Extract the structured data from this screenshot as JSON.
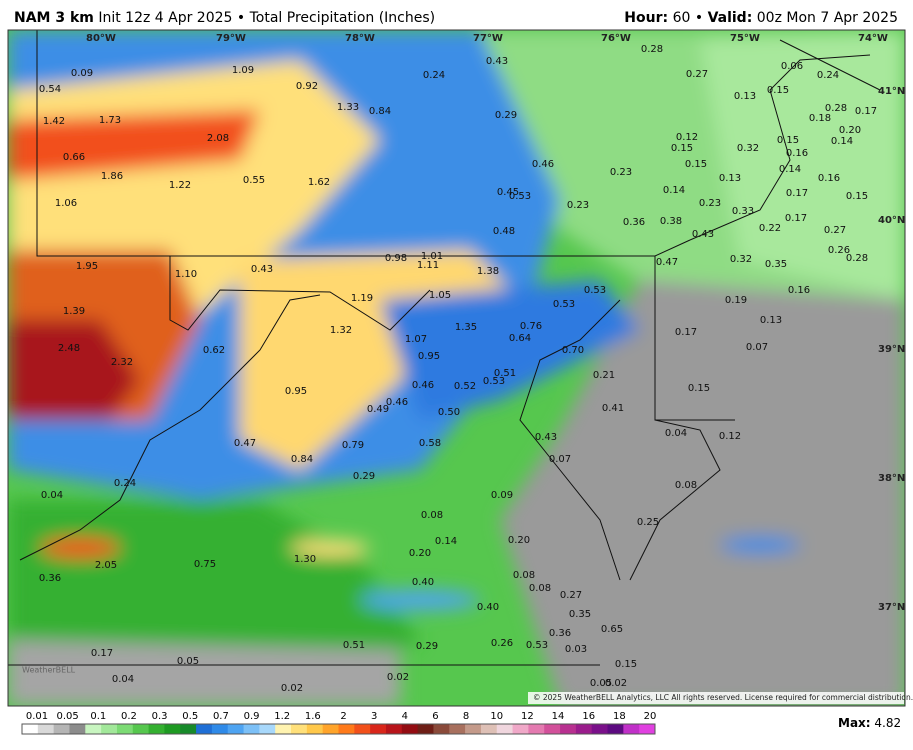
{
  "header": {
    "model": "NAM 3 km",
    "init": "Init 12z 4 Apr 2025",
    "separator": "•",
    "product": "Total Precipitation (Inches)",
    "hour_label": "Hour:",
    "hour": "60",
    "valid_label": "Valid:",
    "valid": "00z Mon 7 Apr 2025"
  },
  "map": {
    "longitude_labels": [
      "80°W",
      "79°W",
      "78°W",
      "77°W",
      "76°W",
      "75°W",
      "74°W"
    ],
    "latitude_labels": [
      "41°N",
      "40°N",
      "39°N",
      "38°N",
      "37°N"
    ],
    "values": [
      "0.09",
      "0.54",
      "1.09",
      "0.92",
      "0.24",
      "0.43",
      "0.28",
      "0.27",
      "0.06",
      "0.24",
      "0.13",
      "0.15",
      "1.42",
      "1.73",
      "1.33",
      "0.84",
      "0.29",
      "0.28",
      "0.18",
      "0.17",
      "2.08",
      "0.12",
      "0.15",
      "0.32",
      "0.15",
      "0.16",
      "0.20",
      "0.14",
      "0.66",
      "1.86",
      "1.22",
      "0.55",
      "1.62",
      "0.46",
      "0.15",
      "0.23",
      "0.13",
      "0.14",
      "0.16",
      "1.06",
      "0.45",
      "0.53",
      "0.23",
      "0.14",
      "0.17",
      "0.15",
      "0.23",
      "0.33",
      "0.36",
      "0.38",
      "0.17",
      "0.22",
      "0.27",
      "0.48",
      "0.43",
      "0.26",
      "0.28",
      "1.01",
      "0.98",
      "1.11",
      "1.95",
      "1.10",
      "0.43",
      "1.38",
      "0.47",
      "0.32",
      "0.35",
      "0.53",
      "1.19",
      "1.05",
      "0.16",
      "0.19",
      "1.39",
      "0.53",
      "0.76",
      "1.35",
      "1.32",
      "0.17",
      "0.13",
      "0.64",
      "1.07",
      "2.48",
      "0.62",
      "0.70",
      "0.07",
      "2.32",
      "0.95",
      "0.21",
      "0.51",
      "0.46",
      "0.52",
      "0.53",
      "0.15",
      "0.95",
      "0.49",
      "0.46",
      "0.50",
      "0.41",
      "0.47",
      "0.79",
      "0.58",
      "0.43",
      "0.04",
      "0.12",
      "0.84",
      "0.07",
      "0.29",
      "0.04",
      "0.24",
      "0.09",
      "0.08",
      "0.08",
      "0.25",
      "0.14",
      "0.20",
      "0.20",
      "2.05",
      "0.75",
      "1.30",
      "0.36",
      "0.08",
      "0.40",
      "0.08",
      "0.27",
      "0.40",
      "0.35",
      "0.36",
      "0.65",
      "0.51",
      "0.29",
      "0.26",
      "0.53",
      "0.03",
      "0.17",
      "0.05",
      "0.04",
      "0.02",
      "0.02",
      "0.15",
      "0.02",
      "0.05"
    ],
    "watermark": "WeatherBELL"
  },
  "legend": {
    "ticks": [
      "0.01",
      "0.05",
      "0.1",
      "0.2",
      "0.3",
      "0.5",
      "0.7",
      "0.9",
      "1.2",
      "1.6",
      "2",
      "3",
      "4",
      "6",
      "8",
      "10",
      "12",
      "14",
      "16",
      "18",
      "20"
    ],
    "colors": [
      "#ffffff",
      "#d9d9d9",
      "#b5b5b5",
      "#8c8c8c",
      "#c8f5c0",
      "#a2e89a",
      "#7cdb74",
      "#56c74e",
      "#34b030",
      "#1e9a22",
      "#178a2a",
      "#1f6fd6",
      "#2f8ae8",
      "#4ea4f2",
      "#7cc0f7",
      "#a8d8fb",
      "#fff3b0",
      "#ffe07a",
      "#ffc84a",
      "#ffa42a",
      "#ff7a1a",
      "#f2501a",
      "#d9261a",
      "#b8141a",
      "#930c12",
      "#6e1e16",
      "#8a4a3a",
      "#a8705e",
      "#c49a8a",
      "#dec0b6",
      "#f0d6de",
      "#f0a8c8",
      "#e47ab0",
      "#d2509a",
      "#b83090",
      "#9a1c8c",
      "#7a108a",
      "#5c0a80",
      "#c030c8",
      "#e040e0"
    ],
    "max_label": "Max:",
    "max": "4.82"
  },
  "copyright": "© 2025 WeatherBELL Analytics, LLC  All rights reserved. License required for commercial distribution."
}
